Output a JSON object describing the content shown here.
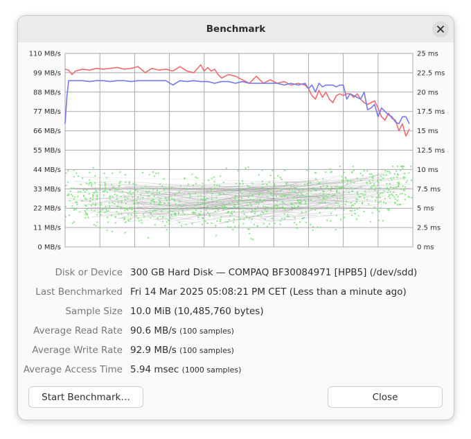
{
  "window": {
    "title": "Benchmark"
  },
  "chart_data": {
    "type": "line",
    "left_axis": {
      "unit": "MB/s",
      "ticks": [
        "0 MB/s",
        "11 MB/s",
        "22 MB/s",
        "33 MB/s",
        "44 MB/s",
        "55 MB/s",
        "66 MB/s",
        "77 MB/s",
        "88 MB/s",
        "99 MB/s",
        "110 MB/s"
      ],
      "range": [
        0,
        110
      ]
    },
    "right_axis": {
      "unit": "ms",
      "ticks": [
        "0 ms",
        "2.5 ms",
        "5 ms",
        "7.5 ms",
        "10 ms",
        "12.5 ms",
        "15 ms",
        "17.5 ms",
        "20 ms",
        "22.5 ms",
        "25 ms"
      ],
      "range": [
        0,
        25
      ]
    },
    "x_axis": {
      "ticks": [
        "0%",
        "10%",
        "20%",
        "30%",
        "40%",
        "50%",
        "60%",
        "70%",
        "80%",
        "90%",
        "100%"
      ],
      "range": [
        0,
        100
      ]
    },
    "grid": true,
    "series": [
      {
        "color": "#f06a6a",
        "x": [
          0,
          1,
          2,
          3,
          5,
          7,
          9,
          11,
          13,
          15,
          17,
          19,
          21,
          23,
          25,
          27,
          29,
          31,
          33,
          35,
          37,
          39,
          40,
          41,
          42,
          43,
          44,
          45,
          47,
          49,
          51,
          53,
          55,
          57,
          59,
          61,
          63,
          65,
          67,
          69,
          70,
          71,
          72,
          73,
          74,
          75,
          76,
          77,
          78,
          79,
          80,
          81,
          82,
          83,
          84,
          85,
          86,
          87,
          88,
          89,
          90,
          91,
          92,
          93,
          94,
          95,
          96,
          97,
          98,
          99
        ],
        "values": [
          101,
          100.5,
          98,
          100,
          101,
          100.5,
          101.5,
          101,
          101.5,
          102,
          101,
          101.5,
          102.5,
          99,
          101.5,
          100.5,
          101,
          100,
          102.5,
          100,
          99,
          103.5,
          100,
          102,
          100,
          101,
          98,
          96,
          98,
          97,
          95,
          93,
          97,
          93,
          95,
          93,
          94,
          92,
          93,
          92,
          90,
          86,
          84,
          89,
          85,
          88,
          84,
          82,
          86,
          87,
          86,
          87,
          87,
          85,
          87,
          84,
          82,
          81,
          82,
          83,
          79,
          74,
          72,
          76,
          73,
          72,
          66,
          70,
          63,
          67
        ]
      },
      {
        "color": "#7478ec",
        "x": [
          0,
          0.5,
          1,
          3,
          5,
          7,
          9,
          11,
          13,
          15,
          17,
          19,
          21,
          23,
          25,
          27,
          29,
          31,
          33,
          35,
          37,
          39,
          41,
          43,
          45,
          47,
          49,
          51,
          53,
          55,
          57,
          59,
          61,
          63,
          65,
          67,
          69,
          70,
          71,
          72,
          73,
          74,
          75,
          76,
          77,
          78,
          79,
          80,
          81,
          82,
          83,
          84,
          85,
          86,
          87,
          88,
          89,
          90,
          91,
          92,
          93,
          94,
          95,
          96,
          97,
          98,
          99
        ],
        "values": [
          70,
          85,
          94.5,
          94.5,
          94.5,
          94,
          94.5,
          94.5,
          94,
          94.5,
          94.5,
          94,
          94.5,
          94.5,
          94.5,
          94.5,
          94.5,
          92,
          94.5,
          94,
          94.5,
          94,
          94,
          93,
          94,
          94,
          93,
          94,
          93,
          93,
          93,
          93,
          93,
          92,
          93,
          92,
          93,
          90,
          92,
          88,
          93,
          91,
          92,
          92,
          92,
          91,
          92,
          92,
          84,
          87,
          86,
          85,
          84,
          88,
          78,
          79,
          81,
          74,
          79,
          77,
          75,
          74,
          71,
          70,
          74,
          74,
          70
        ]
      },
      {
        "color": "#73e373",
        "x": [
          0,
          2,
          4,
          6,
          8,
          10,
          12,
          14,
          16,
          18,
          20,
          22,
          24,
          26,
          28,
          30,
          32,
          34,
          36,
          38,
          40,
          42,
          44,
          46,
          48,
          50,
          52,
          54,
          56,
          58,
          60,
          62,
          64,
          66,
          68,
          70,
          72,
          74,
          76,
          78,
          80,
          82,
          84,
          86,
          88,
          90,
          92,
          94,
          96,
          98,
          100
        ],
        "values": [
          7.0,
          6.8,
          6.5,
          6.4,
          6.2,
          6.0,
          6.0,
          5.9,
          5.8,
          5.7,
          5.6,
          5.6,
          5.5,
          5.5,
          5.5,
          5.4,
          5.4,
          5.4,
          5.5,
          5.4,
          5.4,
          5.5,
          5.4,
          5.5,
          5.5,
          5.5,
          5.6,
          5.6,
          5.7,
          5.7,
          5.8,
          5.9,
          5.9,
          6.0,
          6.1,
          6.2,
          6.3,
          6.4,
          6.5,
          6.6,
          6.7,
          6.8,
          6.9,
          7.0,
          7.1,
          7.3,
          7.5,
          7.6,
          7.8,
          8.0,
          8.2
        ]
      }
    ]
  },
  "info": {
    "disk_label": "Disk or Device",
    "disk_value": "300 GB Hard Disk — COMPAQ BF30084971 [HPB5] (/dev/sdd)",
    "last_label": "Last Benchmarked",
    "last_value": "Fri 14 Mar 2025 05:08:21 PM CET (Less than a minute ago)",
    "sample_label": "Sample Size",
    "sample_value": "10.0 MiB (10,485,760 bytes)",
    "read_label": "Average Read Rate",
    "read_value": "90.6 MB/s",
    "read_samples": "(100 samples)",
    "write_label": "Average Write Rate",
    "write_value": "92.9 MB/s",
    "write_samples": "(100 samples)",
    "access_label": "Average Access Time",
    "access_value": "5.94 msec",
    "access_samples": "(1000 samples)"
  },
  "buttons": {
    "start_label": "Start Benchmark…",
    "close_label": "Close"
  },
  "icons": {
    "close": "close-icon"
  }
}
